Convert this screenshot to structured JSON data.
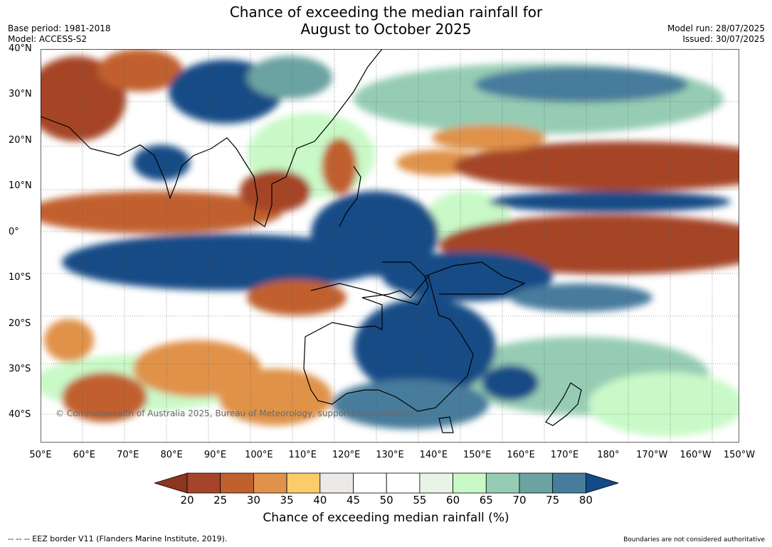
{
  "title": {
    "line1": "Chance of exceeding the median rainfall for",
    "line2": "August to October 2025"
  },
  "meta": {
    "base_period": "Base period: 1981-2018",
    "model": "Model: ACCESS-S2",
    "model_run": "Model run: 28/07/2025",
    "issued": "Issued: 30/07/2025"
  },
  "map": {
    "lon_range": [
      50,
      210
    ],
    "lat_range": [
      -46,
      40
    ],
    "lat_labels": [
      {
        "lat": 40,
        "text": "40°N"
      },
      {
        "lat": 30,
        "text": "30°N"
      },
      {
        "lat": 20,
        "text": "20°N"
      },
      {
        "lat": 10,
        "text": "10°N"
      },
      {
        "lat": 0,
        "text": "0°"
      },
      {
        "lat": -10,
        "text": "10°S"
      },
      {
        "lat": -20,
        "text": "20°S"
      },
      {
        "lat": -30,
        "text": "30°S"
      },
      {
        "lat": -40,
        "text": "40°S"
      }
    ],
    "lon_labels": [
      {
        "lon": 50,
        "text": "50°E"
      },
      {
        "lon": 60,
        "text": "60°E"
      },
      {
        "lon": 70,
        "text": "70°E"
      },
      {
        "lon": 80,
        "text": "80°E"
      },
      {
        "lon": 90,
        "text": "90°E"
      },
      {
        "lon": 100,
        "text": "100°E"
      },
      {
        "lon": 110,
        "text": "110°E"
      },
      {
        "lon": 120,
        "text": "120°E"
      },
      {
        "lon": 130,
        "text": "130°E"
      },
      {
        "lon": 140,
        "text": "140°E"
      },
      {
        "lon": 150,
        "text": "150°E"
      },
      {
        "lon": 160,
        "text": "160°E"
      },
      {
        "lon": 170,
        "text": "170°E"
      },
      {
        "lon": 180,
        "text": "180°"
      },
      {
        "lon": 190,
        "text": "170°W"
      },
      {
        "lon": 200,
        "text": "160°W"
      },
      {
        "lon": 210,
        "text": "150°W"
      }
    ],
    "copyright": "© Commonwealth of Australia 2025, Bureau of Meteorology, supported by COSPPac"
  },
  "colorbar": {
    "label": "Chance of exceeding median rainfall (%)",
    "ticks": [
      "20",
      "25",
      "30",
      "35",
      "40",
      "45",
      "50",
      "55",
      "60",
      "65",
      "70",
      "75",
      "80"
    ],
    "colors": [
      "#a54428",
      "#c1602f",
      "#e0924a",
      "#fdcc6a",
      "#eceae6",
      "#ffffff",
      "#ffffff",
      "#e7f4e6",
      "#c9f9c7",
      "#96ccb4",
      "#6aa3a2",
      "#477c9c"
    ],
    "under_color": "#8c3520",
    "over_color": "#124b86"
  },
  "footer": {
    "left": "--  --  -- EEZ border V11 (Flanders Marine Institute, 2019).",
    "right": "Boundaries are not considered authoritative"
  }
}
